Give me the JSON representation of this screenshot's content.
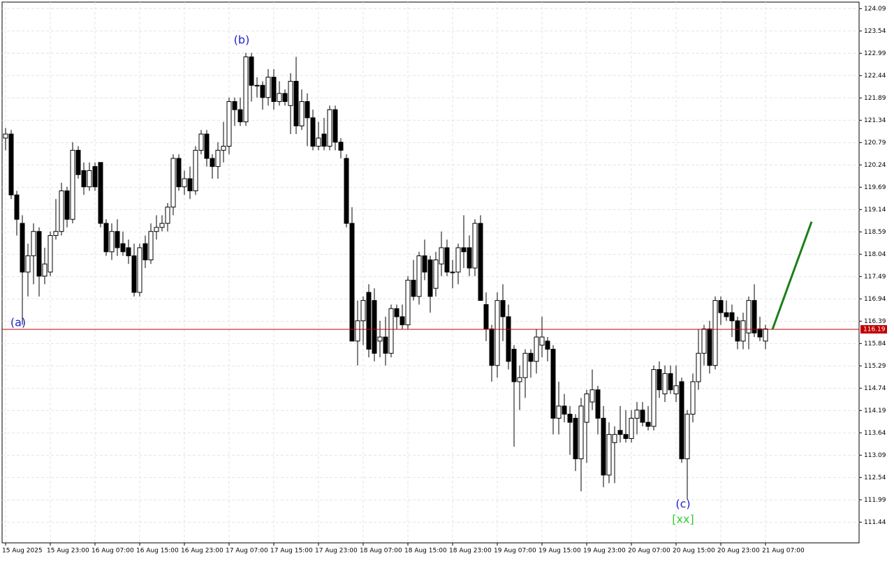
{
  "chart_data": {
    "type": "candlestick",
    "categories": [
      "15 Aug 2025",
      null,
      null,
      null,
      null,
      null,
      null,
      null,
      "15 Aug 23:00",
      null,
      null,
      null,
      null,
      null,
      null,
      null,
      "16 Aug 07:00",
      null,
      null,
      null,
      null,
      null,
      null,
      null,
      "16 Aug 15:00",
      null,
      null,
      null,
      null,
      null,
      null,
      null,
      "16 Aug 23:00",
      null,
      null,
      null,
      null,
      null,
      null,
      null,
      "17 Aug 07:00",
      null,
      null,
      null,
      null,
      null,
      null,
      null,
      "17 Aug 15:00",
      null,
      null,
      null,
      null,
      null,
      null,
      null,
      "17 Aug 23:00",
      null,
      null,
      null,
      null,
      null,
      null,
      null,
      "18 Aug 07:00",
      null,
      null,
      null,
      null,
      null,
      null,
      null,
      "18 Aug 15:00",
      null,
      null,
      null,
      null,
      null,
      null,
      null,
      "18 Aug 23:00",
      null,
      null,
      null,
      null,
      null,
      null,
      null,
      "19 Aug 07:00",
      null,
      null,
      null,
      null,
      null,
      null,
      null,
      "19 Aug 15:00",
      null,
      null,
      null,
      null,
      null,
      null,
      null,
      "19 Aug 23:00",
      null,
      null,
      null,
      null,
      null,
      null,
      null,
      "20 Aug 07:00",
      null,
      null,
      null,
      null,
      null,
      null,
      null,
      "20 Aug 15:00",
      null,
      null,
      null,
      null,
      null,
      null,
      null,
      "20 Aug 23:00",
      null,
      null,
      null,
      null,
      null,
      null,
      null,
      "21 Aug 07:00"
    ],
    "ohlc": [
      [
        120.9,
        121.15,
        120.6,
        121.0
      ],
      [
        121.0,
        121.1,
        119.4,
        119.5
      ],
      [
        119.5,
        119.6,
        118.5,
        118.9
      ],
      [
        118.8,
        119.0,
        116.3,
        117.6
      ],
      [
        117.6,
        118.3,
        117.0,
        118.0
      ],
      [
        118.0,
        118.8,
        117.3,
        118.6
      ],
      [
        118.6,
        118.7,
        117.0,
        117.5
      ],
      [
        117.5,
        118.2,
        117.3,
        117.8
      ],
      [
        117.6,
        118.6,
        117.5,
        118.5
      ],
      [
        118.5,
        119.4,
        118.4,
        118.6
      ],
      [
        118.6,
        119.8,
        118.5,
        119.6
      ],
      [
        119.6,
        119.7,
        118.7,
        118.9
      ],
      [
        118.9,
        120.8,
        118.8,
        120.6
      ],
      [
        120.6,
        120.7,
        119.9,
        120.0
      ],
      [
        120.1,
        120.3,
        119.5,
        119.7
      ],
      [
        119.7,
        120.3,
        119.6,
        120.1
      ],
      [
        120.2,
        120.3,
        119.6,
        119.7
      ],
      [
        120.3,
        120.3,
        118.7,
        118.8
      ],
      [
        118.8,
        118.9,
        118.0,
        118.1
      ],
      [
        118.1,
        118.8,
        117.9,
        118.6
      ],
      [
        118.6,
        118.9,
        118.0,
        118.2
      ],
      [
        118.3,
        118.6,
        118.0,
        118.1
      ],
      [
        118.2,
        118.4,
        117.8,
        118.0
      ],
      [
        118.0,
        118.3,
        117.0,
        117.1
      ],
      [
        117.1,
        118.3,
        117.0,
        118.2
      ],
      [
        118.3,
        118.5,
        117.7,
        117.9
      ],
      [
        117.9,
        118.8,
        117.8,
        118.6
      ],
      [
        118.6,
        119.0,
        118.4,
        118.7
      ],
      [
        118.7,
        119.0,
        118.6,
        118.8
      ],
      [
        118.8,
        119.3,
        118.6,
        119.2
      ],
      [
        119.2,
        120.5,
        119.0,
        120.4
      ],
      [
        120.4,
        120.5,
        119.6,
        119.7
      ],
      [
        119.7,
        120.1,
        119.5,
        119.9
      ],
      [
        119.9,
        120.2,
        119.4,
        119.6
      ],
      [
        119.6,
        120.7,
        119.5,
        120.6
      ],
      [
        120.6,
        121.1,
        120.5,
        121.0
      ],
      [
        121.0,
        121.1,
        120.2,
        120.4
      ],
      [
        120.4,
        120.5,
        119.9,
        120.2
      ],
      [
        120.2,
        120.8,
        119.9,
        120.6
      ],
      [
        120.6,
        121.3,
        120.3,
        120.7
      ],
      [
        120.7,
        121.9,
        120.5,
        121.8
      ],
      [
        121.8,
        121.9,
        121.2,
        121.6
      ],
      [
        121.6,
        121.9,
        121.2,
        121.3
      ],
      [
        121.3,
        123.0,
        121.2,
        122.9
      ],
      [
        122.9,
        123.0,
        121.8,
        122.2
      ],
      [
        122.2,
        122.4,
        121.9,
        122.2
      ],
      [
        122.2,
        122.3,
        121.6,
        121.9
      ],
      [
        121.9,
        122.6,
        121.7,
        122.4
      ],
      [
        122.4,
        122.6,
        121.6,
        121.8
      ],
      [
        121.8,
        122.3,
        121.7,
        122.0
      ],
      [
        122.0,
        122.1,
        121.7,
        121.8
      ],
      [
        121.7,
        122.5,
        121.0,
        122.3
      ],
      [
        122.3,
        122.9,
        121.0,
        121.2
      ],
      [
        121.2,
        122.1,
        121.1,
        121.8
      ],
      [
        121.8,
        122.0,
        120.7,
        121.4
      ],
      [
        121.4,
        121.6,
        120.6,
        120.7
      ],
      [
        120.7,
        121.3,
        120.6,
        120.9
      ],
      [
        121.0,
        121.4,
        120.6,
        120.7
      ],
      [
        120.7,
        121.7,
        120.6,
        121.6
      ],
      [
        121.6,
        121.7,
        120.6,
        120.8
      ],
      [
        120.8,
        120.9,
        120.4,
        120.6
      ],
      [
        120.4,
        120.5,
        118.7,
        118.8
      ],
      [
        118.8,
        119.2,
        115.9,
        115.9
      ],
      [
        115.9,
        116.9,
        115.3,
        116.4
      ],
      [
        116.4,
        117.0,
        115.8,
        116.9
      ],
      [
        117.1,
        117.3,
        115.5,
        115.7
      ],
      [
        116.9,
        117.2,
        115.4,
        115.6
      ],
      [
        115.9,
        116.4,
        115.5,
        116.0
      ],
      [
        116.0,
        116.5,
        115.3,
        115.6
      ],
      [
        115.6,
        116.8,
        115.5,
        116.7
      ],
      [
        116.7,
        116.8,
        116.2,
        116.5
      ],
      [
        116.5,
        116.8,
        116.2,
        116.3
      ],
      [
        116.3,
        117.5,
        116.2,
        117.4
      ],
      [
        117.4,
        117.9,
        116.9,
        117.0
      ],
      [
        117.0,
        118.1,
        116.8,
        118.0
      ],
      [
        118.0,
        118.4,
        117.4,
        117.6
      ],
      [
        117.9,
        118.0,
        116.6,
        117.0
      ],
      [
        117.2,
        118.1,
        117.0,
        117.9
      ],
      [
        117.8,
        118.6,
        117.5,
        118.2
      ],
      [
        118.2,
        118.4,
        117.5,
        117.6
      ],
      [
        117.6,
        117.9,
        117.2,
        117.6
      ],
      [
        117.6,
        118.3,
        117.3,
        118.2
      ],
      [
        118.2,
        119.0,
        117.7,
        118.1
      ],
      [
        118.2,
        118.5,
        117.5,
        117.7
      ],
      [
        117.7,
        118.9,
        117.5,
        118.8
      ],
      [
        118.8,
        119.0,
        116.9,
        116.9
      ],
      [
        116.8,
        117.1,
        115.9,
        116.2
      ],
      [
        116.2,
        116.3,
        114.9,
        115.3
      ],
      [
        115.3,
        117.1,
        115.0,
        116.9
      ],
      [
        116.9,
        117.3,
        115.9,
        116.5
      ],
      [
        116.5,
        116.8,
        115.2,
        115.4
      ],
      [
        115.7,
        115.8,
        113.3,
        114.9
      ],
      [
        114.9,
        115.3,
        114.2,
        115.0
      ],
      [
        115.0,
        115.7,
        114.5,
        115.6
      ],
      [
        115.6,
        115.7,
        115.0,
        115.4
      ],
      [
        115.4,
        116.2,
        115.1,
        116.0
      ],
      [
        115.8,
        116.5,
        115.5,
        116.0
      ],
      [
        115.9,
        116.0,
        115.4,
        115.7
      ],
      [
        115.7,
        115.8,
        113.6,
        114.0
      ],
      [
        114.0,
        114.9,
        113.6,
        114.3
      ],
      [
        114.3,
        114.6,
        113.9,
        114.1
      ],
      [
        114.1,
        114.3,
        113.1,
        113.9
      ],
      [
        114.0,
        114.1,
        112.7,
        113.0
      ],
      [
        113.0,
        114.5,
        112.2,
        114.3
      ],
      [
        113.9,
        114.7,
        112.9,
        114.6
      ],
      [
        114.4,
        115.2,
        114.2,
        114.7
      ],
      [
        114.7,
        114.8,
        113.6,
        114.0
      ],
      [
        114.0,
        114.3,
        112.3,
        112.6
      ],
      [
        112.6,
        113.9,
        112.4,
        113.6
      ],
      [
        113.4,
        113.8,
        112.4,
        113.6
      ],
      [
        113.7,
        114.3,
        113.4,
        113.6
      ],
      [
        113.6,
        114.2,
        113.4,
        113.5
      ],
      [
        113.5,
        114.2,
        113.4,
        114.0
      ],
      [
        114.0,
        114.4,
        113.6,
        114.2
      ],
      [
        114.2,
        114.4,
        113.8,
        113.9
      ],
      [
        113.9,
        114.3,
        113.7,
        113.8
      ],
      [
        113.8,
        115.3,
        113.7,
        115.2
      ],
      [
        115.2,
        115.4,
        114.5,
        114.7
      ],
      [
        114.6,
        115.3,
        114.4,
        115.1
      ],
      [
        115.1,
        115.3,
        114.6,
        114.7
      ],
      [
        114.6,
        115.3,
        114.4,
        114.8
      ],
      [
        114.9,
        115.0,
        112.9,
        113.0
      ],
      [
        113.0,
        114.2,
        112.0,
        114.1
      ],
      [
        114.1,
        115.1,
        113.9,
        114.9
      ],
      [
        114.9,
        116.2,
        114.7,
        115.6
      ],
      [
        115.6,
        116.3,
        115.3,
        116.2
      ],
      [
        116.2,
        116.4,
        115.1,
        115.3
      ],
      [
        115.3,
        117.0,
        115.2,
        116.9
      ],
      [
        116.9,
        117.0,
        116.3,
        116.6
      ],
      [
        116.6,
        116.9,
        116.4,
        116.5
      ],
      [
        116.6,
        116.8,
        116.0,
        116.4
      ],
      [
        116.4,
        116.5,
        115.7,
        115.9
      ],
      [
        115.9,
        116.6,
        115.7,
        116.4
      ],
      [
        116.1,
        117.0,
        115.7,
        116.9
      ],
      [
        116.9,
        117.3,
        116.0,
        116.1
      ],
      [
        116.2,
        116.5,
        115.9,
        116.0
      ],
      [
        115.9,
        116.3,
        115.7,
        116.2
      ]
    ],
    "ylim": [
      110.93,
      124.25
    ],
    "yticks": [
      124.09,
      123.54,
      122.99,
      122.44,
      121.89,
      121.34,
      120.79,
      120.24,
      119.69,
      119.14,
      118.59,
      118.04,
      117.49,
      116.94,
      116.39,
      115.84,
      115.29,
      114.74,
      114.19,
      113.64,
      113.09,
      112.54,
      111.99,
      111.44
    ],
    "grid": true,
    "up_color": "#ffffff",
    "down_color": "#000000",
    "current_price": 116.19,
    "current_price_color": "#c00000",
    "forecast": {
      "values": [
        116.19,
        118.84
      ],
      "color": "#1a7f1a"
    },
    "annotations": [
      "(a)",
      "(b)",
      "(c)",
      "[xx]"
    ]
  }
}
